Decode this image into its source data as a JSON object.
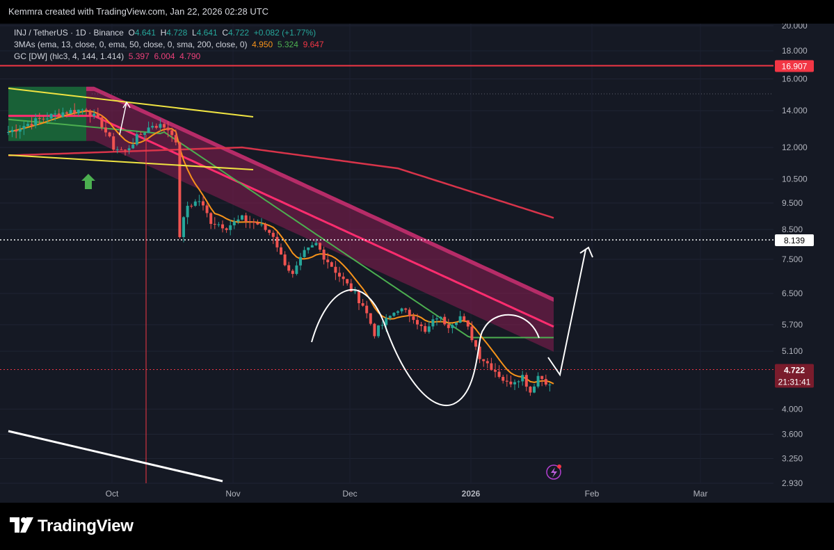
{
  "header": {
    "credit": "Kemmra created with TradingView.com, Jan 22, 2026 02:28 UTC"
  },
  "legend": {
    "symbol": "INJ / TetherUS · 1D · Binance",
    "o_label": "O",
    "o_value": "4.641",
    "h_label": "H",
    "h_value": "4.728",
    "l_label": "L",
    "l_value": "4.641",
    "c_label": "C",
    "c_value": "4.722",
    "change": "+0.082 (+1.77%)",
    "ma_label": "3MAs (ema, 13, close, 0, ema, 50, close, 0, sma, 200, close, 0)",
    "ma_values": [
      "4.950",
      "5.324",
      "9.647"
    ],
    "gc_label": "GC [DW] (hlc3, 4, 144, 1.414)",
    "gc_values": [
      "5.397",
      "6.004",
      "4.790"
    ]
  },
  "brand": {
    "name": "TradingView",
    "logo_icon": "tradingview-logo-icon"
  },
  "chart_data": {
    "type": "candlestick",
    "symbol": "INJ / TetherUS",
    "interval": "1D",
    "exchange": "Binance",
    "y_scale": "log",
    "y_ticks": [
      "20.000",
      "18.000",
      "16.000",
      "14.000",
      "12.000",
      "10.500",
      "9.500",
      "8.500",
      "7.500",
      "6.500",
      "5.700",
      "5.100",
      "4.000",
      "3.600",
      "3.250",
      "2.930"
    ],
    "x_ticks": [
      "Oct",
      "Nov",
      "Dec",
      "2026",
      "Feb",
      "Mar"
    ],
    "price_labels": [
      {
        "value": "16.907",
        "color": "#f23645"
      },
      {
        "value": "8.139",
        "color": "#ffffff"
      },
      {
        "value": "4.722",
        "color": "#f23645"
      }
    ],
    "countdown": "21:31:41",
    "horizontal_levels": [
      16.907,
      8.139,
      4.722
    ],
    "moving_averages": [
      {
        "color": "#f7931a",
        "last": 4.95
      },
      {
        "color": "#4caf50",
        "last": 5.324
      },
      {
        "color": "#f23645",
        "last": 9.647
      }
    ],
    "ohlc_last": {
      "open": 4.641,
      "high": 4.728,
      "low": 4.641,
      "close": 4.722
    }
  }
}
